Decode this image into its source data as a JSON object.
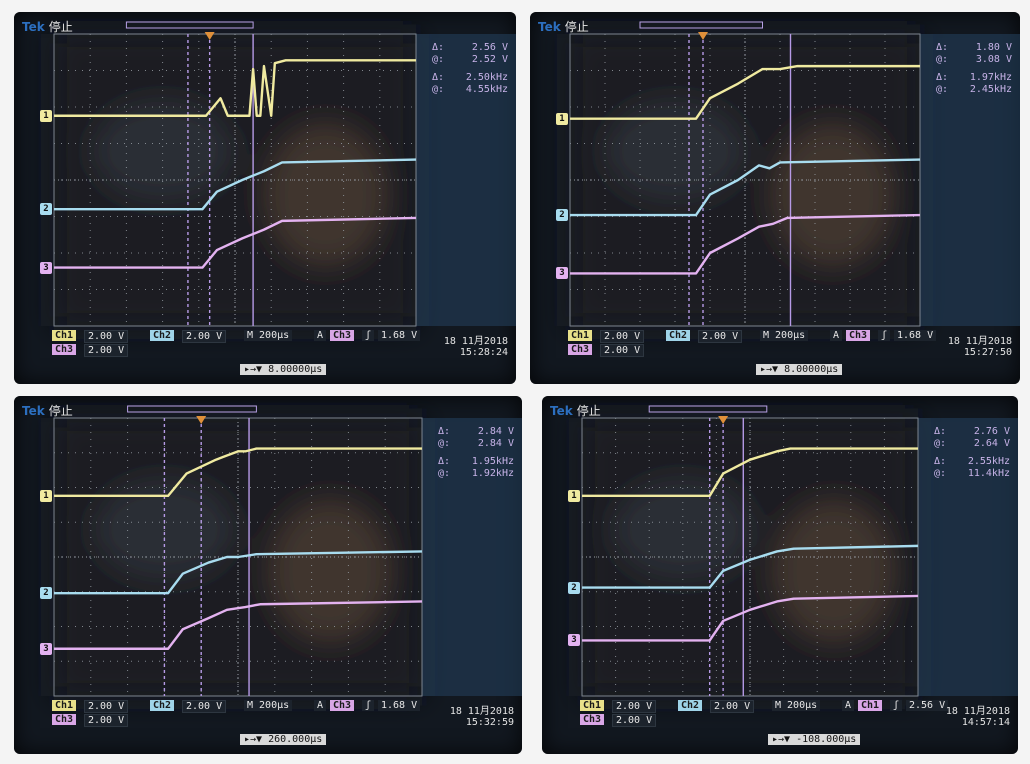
{
  "brand": "Tek",
  "state": "停止",
  "panels": [
    {
      "delta_v": "2.56 V",
      "at_v": "2.52 V",
      "delta_f": "2.50kHz",
      "at_f": "4.55kHz",
      "ch1_label": "Ch1",
      "ch1_scale": "2.00 V",
      "ch2_label": "Ch2",
      "ch2_scale": "2.00 V",
      "ch3_label": "Ch3",
      "ch3_scale": "2.00 V",
      "timebase": "M 200µs",
      "trigger_mode": "A",
      "trigger_source": "Ch3",
      "trigger_edge": "ʃ",
      "trigger_level": "1.68 V",
      "date": "18 11月2018",
      "time": "15:28:24",
      "hpos": "▸→▼ 8.00000µs"
    },
    {
      "delta_v": "1.80 V",
      "at_v": "3.08 V",
      "delta_f": "1.97kHz",
      "at_f": "2.45kHz",
      "ch1_label": "Ch1",
      "ch1_scale": "2.00 V",
      "ch2_label": "Ch2",
      "ch2_scale": "2.00 V",
      "ch3_label": "Ch3",
      "ch3_scale": "2.00 V",
      "timebase": "M 200µs",
      "trigger_mode": "A",
      "trigger_source": "Ch3",
      "trigger_edge": "ʃ",
      "trigger_level": "1.68 V",
      "date": "18 11月2018",
      "time": "15:27:50",
      "hpos": "▸→▼ 8.00000µs"
    },
    {
      "delta_v": "2.84 V",
      "at_v": "2.84 V",
      "delta_f": "1.95kHz",
      "at_f": "1.92kHz",
      "ch1_label": "Ch1",
      "ch1_scale": "2.00 V",
      "ch2_label": "Ch2",
      "ch2_scale": "2.00 V",
      "ch3_label": "Ch3",
      "ch3_scale": "2.00 V",
      "timebase": "M 200µs",
      "trigger_mode": "A",
      "trigger_source": "Ch3",
      "trigger_edge": "ʃ",
      "trigger_level": "1.68 V",
      "date": "18 11月2018",
      "time": "15:32:59",
      "hpos": "▸→▼ 260.000µs"
    },
    {
      "delta_v": "2.76 V",
      "at_v": "2.64 V",
      "delta_f": "2.55kHz",
      "at_f": "11.4kHz",
      "ch1_label": "Ch1",
      "ch1_scale": "2.00 V",
      "ch2_label": "Ch2",
      "ch2_scale": "2.00 V",
      "ch3_label": "Ch3",
      "ch3_scale": "2.00 V",
      "timebase": "M 200µs",
      "trigger_mode": "A",
      "trigger_source": "Ch1",
      "trigger_edge": "ʃ",
      "trigger_level": "2.56 V",
      "date": "18 11月2018",
      "time": "14:57:14",
      "hpos": "▸→▼ -108.000µs"
    }
  ],
  "channel_markers": [
    "1",
    "2",
    "3"
  ],
  "colors": {
    "ch1": "#f0eaa0",
    "ch2": "#a8dcef",
    "ch3": "#e3b2f0",
    "grid": "#9aa0a8",
    "cursor": "#b69ae6"
  }
}
